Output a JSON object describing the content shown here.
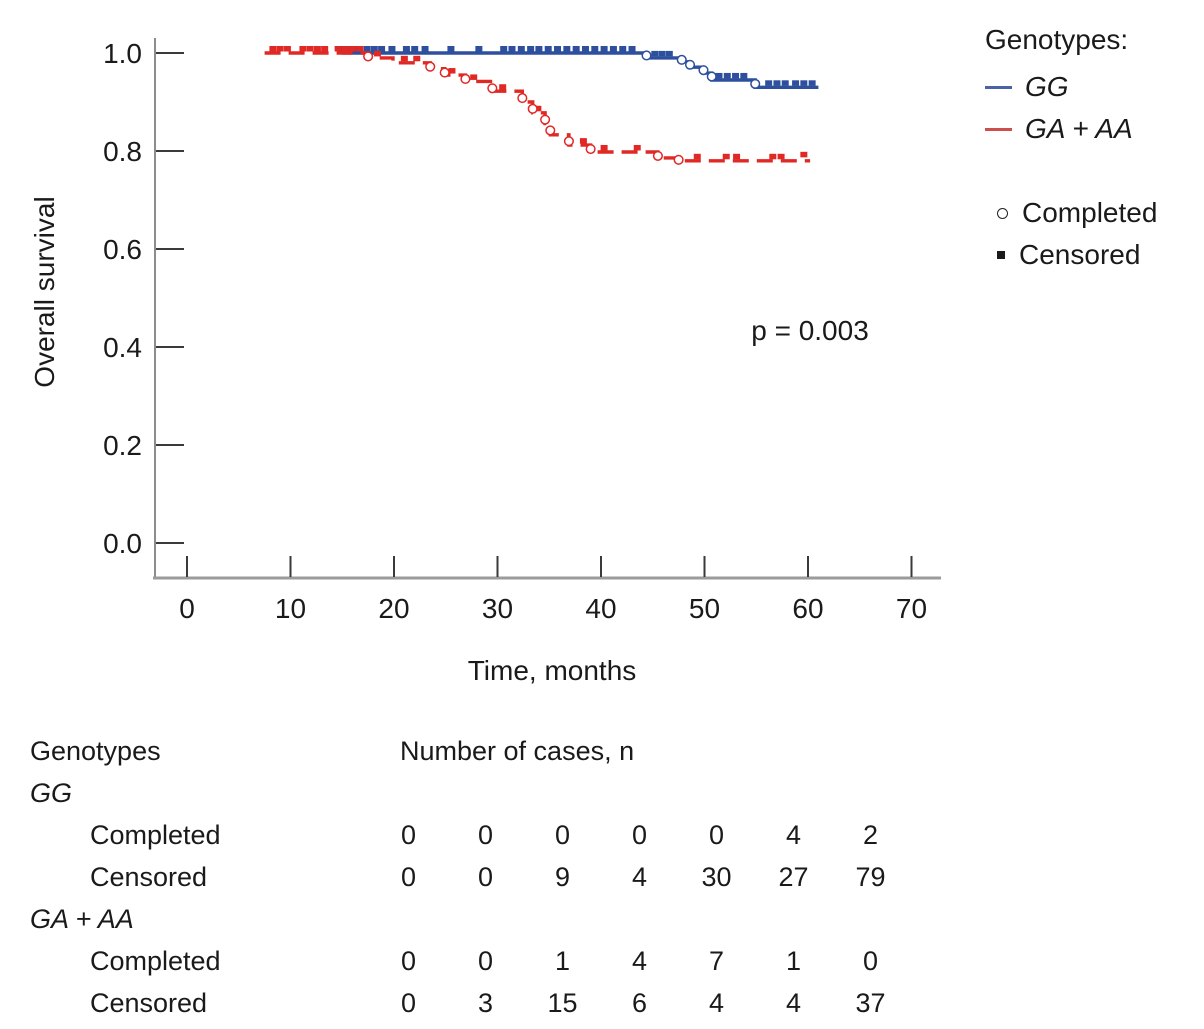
{
  "chart_data": {
    "type": "line",
    "subtype": "kaplan-meier-step",
    "xlabel": "Time, months",
    "ylabel": "Overall survival",
    "annotation": "p = 0.003",
    "xlim": [
      0,
      70
    ],
    "ylim": [
      0.0,
      1.0
    ],
    "xticks": [
      "0",
      "10",
      "20",
      "30",
      "40",
      "50",
      "60",
      "70"
    ],
    "yticks": [
      "0.0",
      "0.2",
      "0.4",
      "0.6",
      "0.8",
      "1.0"
    ],
    "grid": false,
    "legend_position": "right",
    "series": [
      {
        "name": "GG",
        "color": "#2e4f9e",
        "legend_color": "#4a63a8",
        "style": "solid",
        "steps": [
          [
            15.0,
            1.0
          ],
          [
            44.4,
            1.0
          ],
          [
            44.4,
            0.99
          ],
          [
            47.8,
            0.99
          ],
          [
            47.8,
            0.982
          ],
          [
            48.6,
            0.982
          ],
          [
            48.6,
            0.971
          ],
          [
            49.9,
            0.971
          ],
          [
            49.9,
            0.959
          ],
          [
            50.7,
            0.959
          ],
          [
            50.7,
            0.945
          ],
          [
            54.9,
            0.945
          ],
          [
            54.9,
            0.93
          ],
          [
            61.0,
            0.93
          ]
        ],
        "completed_markers": [
          [
            44.4,
            0.995
          ],
          [
            47.8,
            0.986
          ],
          [
            48.6,
            0.976
          ],
          [
            49.9,
            0.965
          ],
          [
            50.7,
            0.952
          ],
          [
            54.9,
            0.937
          ]
        ],
        "censored_markers": [
          [
            15.0,
            1.0
          ],
          [
            15.7,
            1.0
          ],
          [
            16.4,
            1.0
          ],
          [
            17.4,
            1.0
          ],
          [
            18.1,
            1.0
          ],
          [
            18.8,
            1.0
          ],
          [
            19.8,
            1.0
          ],
          [
            21.2,
            1.0
          ],
          [
            22.0,
            1.0
          ],
          [
            23.0,
            1.0
          ],
          [
            25.5,
            1.0
          ],
          [
            28.2,
            1.0
          ],
          [
            30.6,
            1.0
          ],
          [
            31.4,
            1.0
          ],
          [
            32.3,
            1.0
          ],
          [
            33.2,
            1.0
          ],
          [
            34.0,
            1.0
          ],
          [
            34.9,
            1.0
          ],
          [
            35.8,
            1.0
          ],
          [
            36.7,
            1.0
          ],
          [
            37.6,
            1.0
          ],
          [
            38.5,
            1.0
          ],
          [
            39.4,
            1.0
          ],
          [
            40.3,
            1.0
          ],
          [
            41.2,
            1.0
          ],
          [
            42.1,
            1.0
          ],
          [
            43.0,
            1.0
          ],
          [
            45.2,
            0.99
          ],
          [
            45.9,
            0.99
          ],
          [
            46.6,
            0.99
          ],
          [
            51.4,
            0.945
          ],
          [
            52.2,
            0.945
          ],
          [
            53.0,
            0.945
          ],
          [
            53.8,
            0.945
          ],
          [
            56.2,
            0.93
          ],
          [
            57.0,
            0.93
          ],
          [
            57.8,
            0.93
          ],
          [
            58.8,
            0.93
          ],
          [
            59.6,
            0.93
          ],
          [
            60.4,
            0.93
          ]
        ]
      },
      {
        "name": "GA + AA",
        "color": "#e02825",
        "legend_color": "#cd4f49",
        "style": "dashed",
        "steps": [
          [
            7.5,
            1.0
          ],
          [
            17.5,
            1.0
          ],
          [
            17.5,
            0.99
          ],
          [
            19.9,
            0.99
          ],
          [
            19.9,
            0.98
          ],
          [
            23.5,
            0.98
          ],
          [
            23.5,
            0.968
          ],
          [
            24.9,
            0.968
          ],
          [
            24.9,
            0.955
          ],
          [
            26.9,
            0.955
          ],
          [
            26.9,
            0.942
          ],
          [
            29.5,
            0.942
          ],
          [
            29.5,
            0.922
          ],
          [
            32.4,
            0.922
          ],
          [
            32.4,
            0.9
          ],
          [
            33.4,
            0.9
          ],
          [
            33.4,
            0.878
          ],
          [
            34.6,
            0.878
          ],
          [
            34.6,
            0.856
          ],
          [
            35.1,
            0.856
          ],
          [
            35.1,
            0.833
          ],
          [
            36.9,
            0.833
          ],
          [
            36.9,
            0.812
          ],
          [
            39.0,
            0.812
          ],
          [
            39.0,
            0.798
          ],
          [
            45.5,
            0.798
          ],
          [
            45.5,
            0.786
          ],
          [
            47.5,
            0.786
          ],
          [
            47.5,
            0.78
          ],
          [
            60.2,
            0.78
          ]
        ],
        "completed_markers": [
          [
            17.5,
            0.993
          ],
          [
            23.5,
            0.972
          ],
          [
            24.9,
            0.96
          ],
          [
            26.9,
            0.947
          ],
          [
            29.5,
            0.928
          ],
          [
            32.4,
            0.908
          ],
          [
            33.4,
            0.886
          ],
          [
            34.6,
            0.864
          ],
          [
            35.1,
            0.842
          ],
          [
            36.9,
            0.82
          ],
          [
            39.0,
            0.804
          ],
          [
            45.5,
            0.79
          ],
          [
            47.5,
            0.782
          ]
        ],
        "censored_markers": [
          [
            8.3,
            1.0
          ],
          [
            9.0,
            1.0
          ],
          [
            9.7,
            1.0
          ],
          [
            11.2,
            1.0
          ],
          [
            11.9,
            1.0
          ],
          [
            12.6,
            1.0
          ],
          [
            13.3,
            1.0
          ],
          [
            14.6,
            1.0
          ],
          [
            15.3,
            1.0
          ],
          [
            16.0,
            1.0
          ],
          [
            16.7,
            1.0
          ],
          [
            18.4,
            0.99
          ],
          [
            21.0,
            0.98
          ],
          [
            22.2,
            0.98
          ],
          [
            25.6,
            0.955
          ],
          [
            27.7,
            0.942
          ],
          [
            30.5,
            0.922
          ],
          [
            33.9,
            0.878
          ],
          [
            38.3,
            0.812
          ],
          [
            40.3,
            0.798
          ],
          [
            43.5,
            0.798
          ],
          [
            49.3,
            0.78
          ],
          [
            52.1,
            0.78
          ],
          [
            53.1,
            0.78
          ],
          [
            56.6,
            0.78
          ],
          [
            57.4,
            0.78
          ],
          [
            59.6,
            0.784
          ]
        ]
      }
    ]
  },
  "legend": {
    "title": "Genotypes:",
    "items": [
      {
        "name": "GG"
      },
      {
        "name": "GA + AA"
      }
    ],
    "markers": [
      {
        "icon": "open-circle",
        "label": "Completed"
      },
      {
        "icon": "filled-square",
        "label": "Censored"
      }
    ]
  },
  "annotation": {
    "p_value": "p = 0.003"
  },
  "axes": {
    "x_title": "Time, months",
    "y_title": "Overall survival"
  },
  "table": {
    "col1_header": "Genotypes",
    "col2_header": "Number of cases, n",
    "groups": [
      {
        "name": "GG",
        "rows": [
          {
            "label": "Completed",
            "values": [
              "0",
              "0",
              "0",
              "0",
              "0",
              "4",
              "2"
            ]
          },
          {
            "label": "Censored",
            "values": [
              "0",
              "0",
              "9",
              "4",
              "30",
              "27",
              "79"
            ]
          }
        ]
      },
      {
        "name": "GA + AA",
        "rows": [
          {
            "label": "Completed",
            "values": [
              "0",
              "0",
              "1",
              "4",
              "7",
              "1",
              "0"
            ]
          },
          {
            "label": "Censored",
            "values": [
              "0",
              "3",
              "15",
              "6",
              "4",
              "4",
              "37"
            ]
          }
        ]
      }
    ]
  }
}
